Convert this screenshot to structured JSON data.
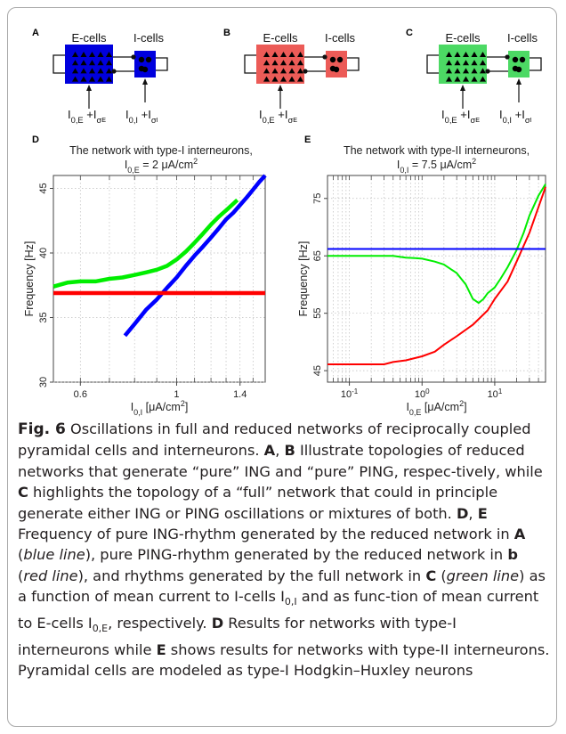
{
  "topology": {
    "A": {
      "letter": "A",
      "e_label": "E-cells",
      "i_label": "I-cells",
      "e_color": "#0000dd",
      "i_color": "#0000dd",
      "e_input": "I0,E +Iσ_E",
      "i_input": "I0,I +Iσ_I",
      "show_e_input": true,
      "show_i_input": true
    },
    "B": {
      "letter": "B",
      "e_label": "E-cells",
      "i_label": "I-cells",
      "e_color": "#ec5b57",
      "i_color": "#ec5b57",
      "show_e_input": true,
      "show_i_input": false
    },
    "C": {
      "letter": "C",
      "e_label": "E-cells",
      "i_label": "I-cells",
      "e_color": "#4cd964",
      "i_color": "#4cd964",
      "show_e_input": true,
      "show_i_input": true
    }
  },
  "colors": {
    "ing": "#0000ff",
    "ping": "#ff0000",
    "full": "#00ee00"
  },
  "chart_data": [
    {
      "panel": "D",
      "type": "line",
      "title": "The network with type-I interneurons,",
      "subtitle": "I0,E = 2 μA/cm2",
      "xlabel": "I0,I [μA/cm2]",
      "ylabel": "Frequency [Hz]",
      "xscale": "log",
      "xlim": [
        0.52,
        1.6
      ],
      "ylim": [
        30,
        46
      ],
      "xticks": [
        0.6,
        1.0,
        1.4
      ],
      "xtick_labels": [
        "0.6",
        "1",
        "1.4"
      ],
      "yticks": [
        30,
        35,
        40,
        45
      ],
      "grid": true,
      "series": [
        {
          "key": "full",
          "x": [
            0.52,
            0.56,
            0.6,
            0.65,
            0.7,
            0.75,
            0.8,
            0.85,
            0.9,
            0.95,
            1.0,
            1.05,
            1.1,
            1.15,
            1.2,
            1.25,
            1.3,
            1.35,
            1.38
          ],
          "y": [
            37.4,
            37.7,
            37.8,
            37.8,
            38.0,
            38.1,
            38.3,
            38.5,
            38.7,
            39.0,
            39.5,
            40.1,
            40.8,
            41.5,
            42.2,
            42.8,
            43.3,
            43.8,
            44.1
          ]
        },
        {
          "key": "ing",
          "x": [
            0.76,
            0.8,
            0.85,
            0.9,
            0.95,
            1.0,
            1.05,
            1.1,
            1.15,
            1.2,
            1.25,
            1.3,
            1.35,
            1.4,
            1.45,
            1.5,
            1.55,
            1.6
          ],
          "y": [
            33.6,
            34.5,
            35.6,
            36.4,
            37.3,
            38.1,
            39.0,
            39.8,
            40.5,
            41.2,
            41.9,
            42.6,
            43.1,
            43.7,
            44.3,
            44.9,
            45.5,
            46.0
          ]
        },
        {
          "key": "ping",
          "x": [
            0.52,
            1.6
          ],
          "y": [
            36.9,
            36.9
          ]
        }
      ]
    },
    {
      "panel": "E",
      "type": "line",
      "title": "The network with type-II interneurons,",
      "subtitle": "I0,I = 7.5 μA/cm2",
      "xlabel": "I0,E [μA/cm2]",
      "ylabel": "Frequency [Hz]",
      "xscale": "log",
      "xlim": [
        0.05,
        50
      ],
      "ylim": [
        43,
        79
      ],
      "xticks": [
        0.1,
        1,
        10
      ],
      "xtick_labels": [
        "10-1",
        "100",
        "101"
      ],
      "yticks": [
        45,
        55,
        65,
        75
      ],
      "grid": true,
      "series": [
        {
          "key": "full",
          "x": [
            0.05,
            0.1,
            0.2,
            0.4,
            0.6,
            0.8,
            1.0,
            1.5,
            2.0,
            3.0,
            4.0,
            5.0,
            6.0,
            7.0,
            8.0,
            10,
            12,
            15,
            20,
            25,
            30,
            40,
            50
          ],
          "y": [
            65.0,
            65.0,
            65.0,
            65.0,
            64.7,
            64.6,
            64.5,
            64.0,
            63.5,
            62.0,
            60.0,
            57.5,
            56.8,
            57.5,
            58.5,
            59.5,
            61.0,
            63.0,
            66.0,
            69.0,
            72.0,
            75.5,
            77.5
          ]
        },
        {
          "key": "ping",
          "x": [
            0.05,
            0.1,
            0.2,
            0.3,
            0.4,
            0.6,
            1.0,
            1.5,
            2.0,
            3.0,
            5.0,
            8.0,
            10,
            15,
            20,
            30,
            40,
            50
          ],
          "y": [
            46.1,
            46.1,
            46.1,
            46.1,
            46.5,
            46.8,
            47.5,
            48.3,
            49.5,
            51.0,
            53.0,
            55.5,
            57.5,
            60.5,
            64.0,
            69.0,
            73.5,
            77.0
          ]
        },
        {
          "key": "ing",
          "x": [
            0.05,
            50
          ],
          "y": [
            66.2,
            66.2
          ]
        }
      ]
    }
  ],
  "caption": {
    "label": "Fig. 6",
    "segments": [
      {
        "b": false,
        "t": "Oscillations in full and reduced networks of reciprocally coupled pyramidal cells and interneurons. "
      },
      {
        "b": true,
        "t": "A"
      },
      {
        "b": false,
        "t": ", "
      },
      {
        "b": true,
        "t": "B"
      },
      {
        "b": false,
        "t": " Illustrate topologies of reduced networks that generate “pure” ING and “pure” PING, respec-tively, while "
      },
      {
        "b": true,
        "t": "C"
      },
      {
        "b": false,
        "t": " highlights the topology of a “full” network that could in principle generate either ING or PING oscillations or mixtures of both. "
      },
      {
        "b": true,
        "t": "D"
      },
      {
        "b": false,
        "t": ", "
      },
      {
        "b": true,
        "t": "E"
      },
      {
        "b": false,
        "t": " Frequency of pure ING-rhythm generated by the reduced network in "
      },
      {
        "b": true,
        "t": "A"
      },
      {
        "b": false,
        "t": " (blue line), pure PING-rhythm generated by the reduced network in "
      },
      {
        "b": true,
        "t": "b"
      },
      {
        "b": false,
        "t": " (red line), and rhythms generated by the full network in "
      },
      {
        "b": true,
        "t": "C"
      },
      {
        "b": false,
        "t": " (green line) as a function of mean current to I-cells I0,I and as func-tion of mean current to E-cells I0,E, respectively. "
      },
      {
        "b": true,
        "t": "D"
      },
      {
        "b": false,
        "t": " Results for networks with type-I interneurons while "
      },
      {
        "b": true,
        "t": "E"
      },
      {
        "b": false,
        "t": " shows results for networks with type-II interneurons. Pyramidal cells are modeled as type-I Hodgkin–Huxley neurons"
      }
    ]
  }
}
